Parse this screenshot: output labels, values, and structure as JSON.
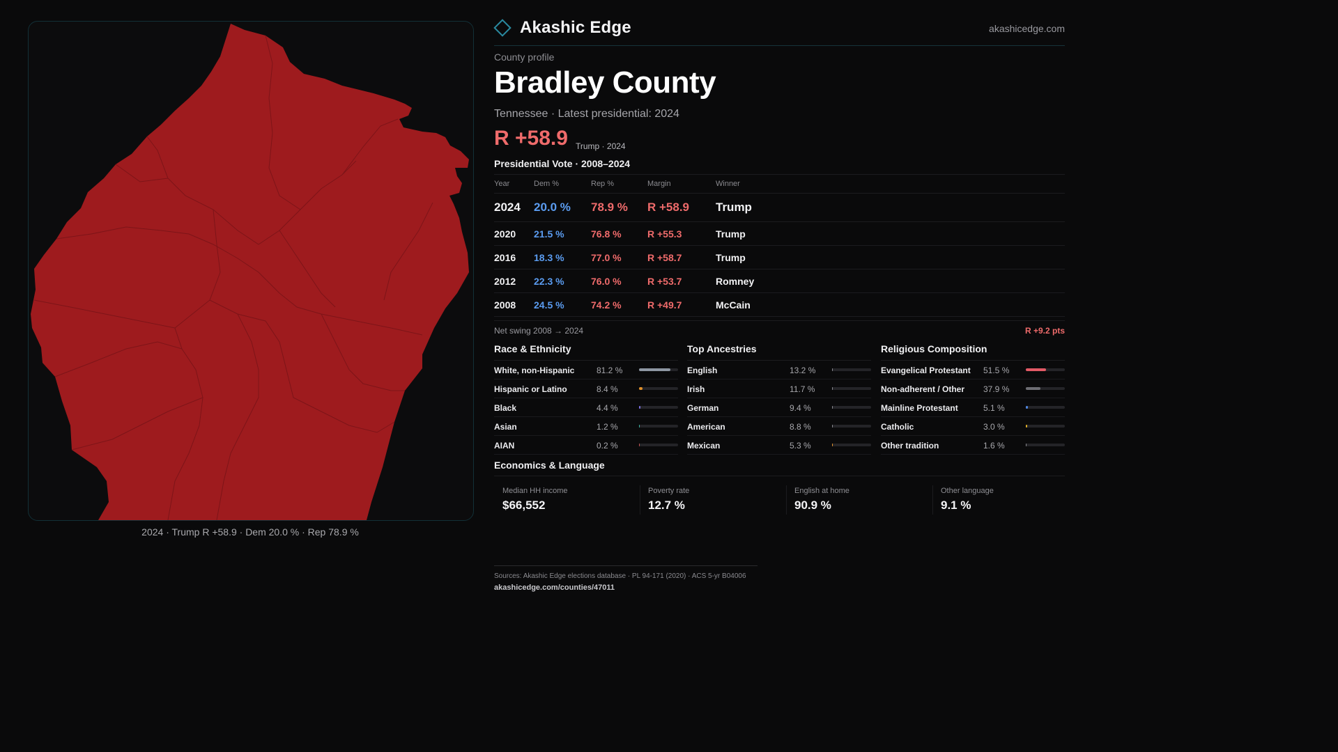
{
  "brand": {
    "name": "Akashic Edge",
    "site": "akashicedge.com",
    "accent": "#2a8aa0"
  },
  "profile": {
    "eyebrow": "County profile",
    "county": "Bradley County",
    "subtitle": "Tennessee · Latest presidential: 2024",
    "headline_margin": "R +58.9",
    "headline_note": "Trump · 2024"
  },
  "map": {
    "fill_color": "#9e1b1e",
    "caption": "2024 · Trump R +58.9 · Dem 20.0 % · Rep 78.9 %"
  },
  "vote": {
    "title": "Presidential Vote · 2008–2024",
    "headers": {
      "year": "Year",
      "dem": "Dem %",
      "rep": "Rep %",
      "margin": "Margin",
      "winner": "Winner"
    },
    "rows": [
      {
        "year": "2024",
        "dem": "20.0 %",
        "rep": "78.9 %",
        "margin": "R +58.9",
        "winner": "Trump"
      },
      {
        "year": "2020",
        "dem": "21.5 %",
        "rep": "76.8 %",
        "margin": "R +55.3",
        "winner": "Trump"
      },
      {
        "year": "2016",
        "dem": "18.3 %",
        "rep": "77.0 %",
        "margin": "R +58.7",
        "winner": "Trump"
      },
      {
        "year": "2012",
        "dem": "22.3 %",
        "rep": "76.0 %",
        "margin": "R +53.7",
        "winner": "Romney"
      },
      {
        "year": "2008",
        "dem": "24.5 %",
        "rep": "74.2 %",
        "margin": "R +49.7",
        "winner": "McCain"
      }
    ],
    "swing_label": "Net swing 2008 → 2024",
    "swing_value": "R +9.2 pts"
  },
  "race": {
    "title": "Race & Ethnicity",
    "rows": [
      {
        "label": "White, non-Hispanic",
        "pct": "81.2 %",
        "value": 81.2,
        "color": "#8e97a3"
      },
      {
        "label": "Hispanic or Latino",
        "pct": "8.4 %",
        "value": 8.4,
        "color": "#e0902a"
      },
      {
        "label": "Black",
        "pct": "4.4 %",
        "value": 4.4,
        "color": "#7a6ee0"
      },
      {
        "label": "Asian",
        "pct": "1.2 %",
        "value": 1.2,
        "color": "#3bb0a0"
      },
      {
        "label": "AIAN",
        "pct": "0.2 %",
        "value": 0.2,
        "color": "#c05050"
      }
    ]
  },
  "ancestry": {
    "title": "Top Ancestries",
    "rows": [
      {
        "label": "English",
        "pct": "13.2 %",
        "value": 13.2,
        "color": "#8a8a90"
      },
      {
        "label": "Irish",
        "pct": "11.7 %",
        "value": 11.7,
        "color": "#8a8a90"
      },
      {
        "label": "German",
        "pct": "9.4 %",
        "value": 9.4,
        "color": "#8a8a90"
      },
      {
        "label": "American",
        "pct": "8.8 %",
        "value": 8.8,
        "color": "#8a8a90"
      },
      {
        "label": "Mexican",
        "pct": "5.3 %",
        "value": 5.3,
        "color": "#e0902a"
      }
    ]
  },
  "religion": {
    "title": "Religious Composition",
    "rows": [
      {
        "label": "Evangelical Protestant",
        "pct": "51.5 %",
        "value": 51.5,
        "color": "#e35a66"
      },
      {
        "label": "Non-adherent / Other",
        "pct": "37.9 %",
        "value": 37.9,
        "color": "#6d6d73"
      },
      {
        "label": "Mainline Protestant",
        "pct": "5.1 %",
        "value": 5.1,
        "color": "#4f86e0"
      },
      {
        "label": "Catholic",
        "pct": "3.0 %",
        "value": 3.0,
        "color": "#e0b02a"
      },
      {
        "label": "Other tradition",
        "pct": "1.6 %",
        "value": 1.6,
        "color": "#8a8a90"
      }
    ]
  },
  "economics": {
    "title": "Economics & Language",
    "cells": [
      {
        "label": "Median HH income",
        "value": "$66,552"
      },
      {
        "label": "Poverty rate",
        "value": "12.7 %"
      },
      {
        "label": "English at home",
        "value": "90.9 %"
      },
      {
        "label": "Other language",
        "value": "9.1 %"
      }
    ]
  },
  "footer": {
    "sources": "Sources: Akashic Edge elections database · PL 94-171 (2020) · ACS 5-yr B04006",
    "url": "akashicedge.com/counties/47011"
  }
}
